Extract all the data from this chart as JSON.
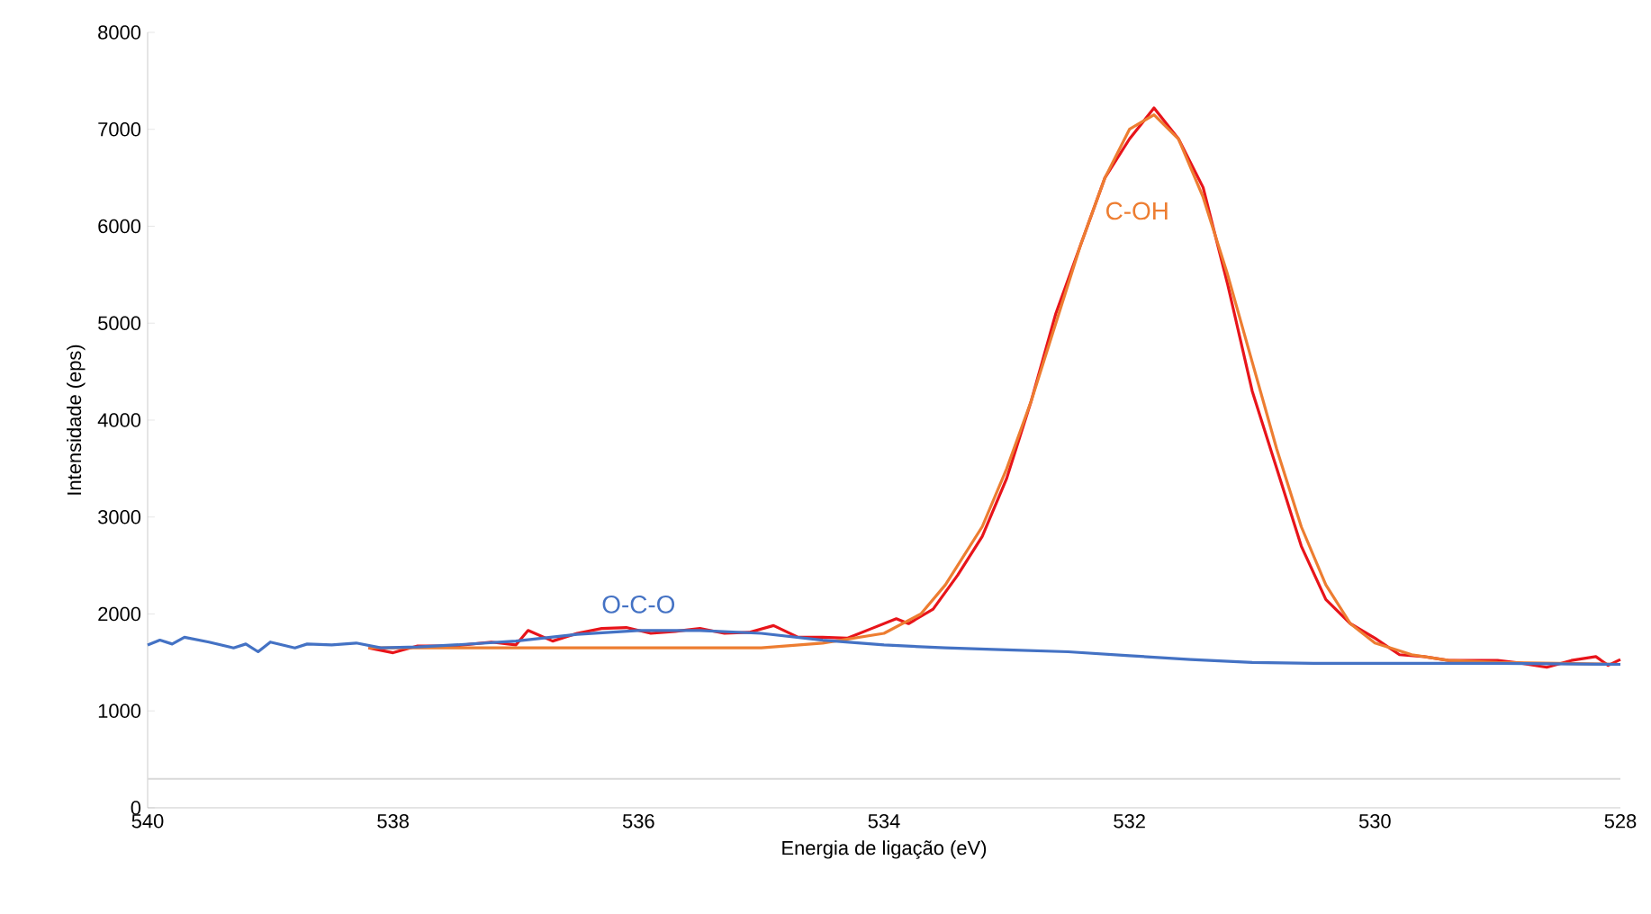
{
  "chart_data": {
    "type": "line",
    "xlabel": "Energia de ligação (eV)",
    "ylabel": "Intensidade (eps)",
    "xlim": [
      540,
      528
    ],
    "xticks": [
      540,
      538,
      536,
      534,
      532,
      530,
      528
    ],
    "ylim": [
      0,
      8000
    ],
    "yticks": [
      0,
      1000,
      2000,
      3000,
      4000,
      5000,
      6000,
      7000,
      8000
    ],
    "grid": false,
    "legend": false,
    "marker": "none",
    "line_style": "solid",
    "ref_lines": [
      {
        "axis": "y",
        "value": 300,
        "color": "#d9d9d9"
      }
    ],
    "series": [
      {
        "color": "#e8141a",
        "x": [
          538.2,
          538.0,
          537.8,
          537.5,
          537.2,
          537.0,
          536.9,
          536.7,
          536.5,
          536.3,
          536.1,
          535.9,
          535.7,
          535.5,
          535.3,
          535.1,
          534.9,
          534.7,
          534.5,
          534.3,
          534.1,
          533.9,
          533.8,
          533.6,
          533.4,
          533.2,
          533.0,
          532.8,
          532.6,
          532.4,
          532.2,
          532.0,
          531.8,
          531.6,
          531.4,
          531.2,
          531.0,
          530.8,
          530.6,
          530.4,
          530.2,
          530.0,
          529.8,
          529.6,
          529.4,
          529.0,
          528.8,
          528.6,
          528.4,
          528.2,
          528.1,
          528.0
        ],
        "values": [
          1650,
          1600,
          1670,
          1670,
          1710,
          1680,
          1830,
          1720,
          1800,
          1850,
          1860,
          1800,
          1820,
          1850,
          1800,
          1810,
          1880,
          1760,
          1760,
          1750,
          1850,
          1950,
          1900,
          2050,
          2400,
          2800,
          3400,
          4200,
          5100,
          5800,
          6500,
          6900,
          7220,
          6900,
          6400,
          5400,
          4300,
          3500,
          2700,
          2150,
          1900,
          1750,
          1580,
          1560,
          1520,
          1520,
          1490,
          1450,
          1520,
          1560,
          1470,
          1530
        ]
      },
      {
        "name": "C-OH",
        "color": "#ed7d31",
        "x": [
          538.2,
          537,
          536,
          535,
          534.5,
          534,
          533.7,
          533.5,
          533.2,
          533,
          532.8,
          532.6,
          532.4,
          532.2,
          532,
          531.8,
          531.6,
          531.4,
          531.2,
          531,
          530.8,
          530.6,
          530.4,
          530.2,
          530,
          529.7,
          529.4,
          529,
          528.5,
          528
        ],
        "values": [
          1650,
          1650,
          1650,
          1650,
          1700,
          1800,
          2000,
          2300,
          2900,
          3500,
          4200,
          5000,
          5800,
          6500,
          7000,
          7150,
          6900,
          6300,
          5500,
          4600,
          3700,
          2900,
          2300,
          1900,
          1700,
          1580,
          1520,
          1500,
          1490,
          1480
        ]
      },
      {
        "name": "O-C-O",
        "color": "#4472c4",
        "x": [
          540,
          539.9,
          539.8,
          539.7,
          539.5,
          539.3,
          539.2,
          539.1,
          539.0,
          538.8,
          538.7,
          538.5,
          538.3,
          538.1,
          537.8,
          537.5,
          537.0,
          536.5,
          536.0,
          535.5,
          535.0,
          534.5,
          534.0,
          533.5,
          533,
          532.5,
          532,
          531.5,
          531,
          530.5,
          530,
          529,
          528
        ],
        "values": [
          1680,
          1730,
          1690,
          1760,
          1710,
          1650,
          1690,
          1610,
          1710,
          1650,
          1690,
          1680,
          1700,
          1650,
          1660,
          1680,
          1720,
          1790,
          1830,
          1830,
          1800,
          1730,
          1680,
          1650,
          1630,
          1610,
          1570,
          1530,
          1500,
          1490,
          1490,
          1490,
          1480
        ]
      }
    ]
  }
}
